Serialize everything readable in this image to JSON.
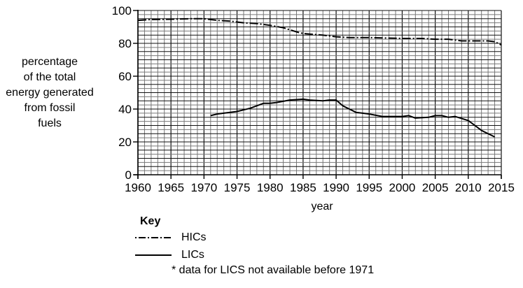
{
  "chart_data": {
    "type": "line",
    "title": "",
    "xlabel": "year",
    "ylabel": "percentage of the total energy generated from fossil fuels",
    "ylabel_lines": [
      "percentage",
      "of the total",
      "energy generated",
      "from fossil",
      "fuels"
    ],
    "xlim": [
      1960,
      2015
    ],
    "ylim": [
      0,
      100
    ],
    "x_ticks": [
      1960,
      1965,
      1970,
      1975,
      1980,
      1985,
      1990,
      1995,
      2000,
      2005,
      2010,
      2015
    ],
    "y_ticks": [
      0,
      20,
      40,
      60,
      80,
      100
    ],
    "grid": {
      "on": true,
      "x_minor_step": 1,
      "y_minor_step": 2.5
    },
    "legend": {
      "title": "Key",
      "position": "below"
    },
    "series": [
      {
        "name": "HICs",
        "style": "dash-dot",
        "x": [
          1960,
          1962,
          1965,
          1968,
          1970,
          1972,
          1974,
          1976,
          1978,
          1980,
          1982,
          1984,
          1985,
          1988,
          1990,
          1992,
          1995,
          2000,
          2003,
          2005,
          2007,
          2009,
          2010,
          2013,
          2014,
          2015
        ],
        "values": [
          94,
          94.5,
          94.7,
          95,
          95,
          94,
          93.5,
          92.5,
          92,
          91,
          89.5,
          87,
          86,
          85,
          84,
          83.5,
          83.5,
          83,
          83,
          82.5,
          82.5,
          81.5,
          81.5,
          81.5,
          81,
          79
        ]
      },
      {
        "name": "LICs",
        "style": "solid",
        "x": [
          1971,
          1972,
          1973,
          1975,
          1976,
          1977,
          1978,
          1979,
          1980,
          1981,
          1983,
          1985,
          1986,
          1988,
          1989,
          1990,
          1991,
          1992,
          1993,
          1994,
          1995,
          1997,
          1998,
          2000,
          2001,
          2002,
          2004,
          2005,
          2006,
          2007,
          2008,
          2010,
          2011,
          2012,
          2014
        ],
        "values": [
          36,
          37,
          37.5,
          38.5,
          39.5,
          40.5,
          42,
          43.5,
          43.5,
          44,
          45.5,
          46,
          45.5,
          45,
          45.5,
          45.5,
          42,
          40,
          38,
          37.5,
          37,
          35.5,
          35.5,
          35.5,
          36,
          34.5,
          35,
          36,
          36,
          35,
          35.5,
          33,
          30,
          27,
          23
        ]
      }
    ],
    "annotations": [
      "* data for LICS not available before 1971"
    ]
  },
  "labels": {
    "ylabel_lines": [
      "percentage",
      "of the total",
      "energy generated",
      "from fossil",
      "fuels"
    ],
    "xlabel": "year",
    "key_title": "Key",
    "key_hic": "HICs",
    "key_lic": "LICs",
    "key_note": "* data for LICS not available before 1971"
  },
  "colors": {
    "line": "#000000",
    "grid_major": "#111111",
    "grid_minor": "#777777"
  }
}
